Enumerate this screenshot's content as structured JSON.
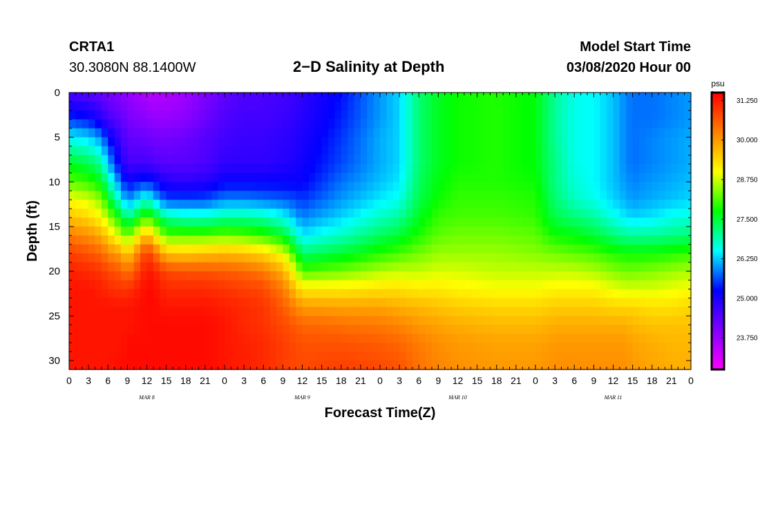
{
  "header": {
    "station_id": "CRTA1",
    "coords": "30.3080N 88.1400W",
    "title": "2−D Salinity at Depth",
    "start_label": "Model Start Time",
    "start_value": "03/08/2020 Hour 00"
  },
  "colorbar": {
    "unit": "psu",
    "stops": [
      "#ff00ff",
      "#8000ff",
      "#0000ff",
      "#00ffff",
      "#00ff00",
      "#ffff00",
      "#ff8000",
      "#ff0000"
    ]
  },
  "chart_data": {
    "type": "heatmap",
    "title": "2−D Salinity at Depth",
    "xlabel": "Forecast Time(Z)",
    "ylabel": "Depth (ft)",
    "x_hours": [
      0,
      96
    ],
    "x_ticks": [
      "0",
      "3",
      "6",
      "9",
      "12",
      "15",
      "18",
      "21",
      "0",
      "3",
      "6",
      "9",
      "12",
      "15",
      "18",
      "21",
      "0",
      "3",
      "6",
      "9",
      "12",
      "15",
      "18",
      "21",
      "0",
      "3",
      "6",
      "9",
      "12",
      "15",
      "18",
      "21",
      "0"
    ],
    "day_labels": [
      {
        "label": "MAR 8",
        "hour": 12
      },
      {
        "label": "MAR 9",
        "hour": 36
      },
      {
        "label": "MAR 10",
        "hour": 60
      },
      {
        "label": "MAR 11",
        "hour": 84
      }
    ],
    "ylim": [
      0,
      31
    ],
    "y_ticks": [
      0,
      5,
      10,
      15,
      20,
      25,
      30
    ],
    "color_range": [
      22.75,
      31.5
    ],
    "colorbar_ticks": [
      "23.750",
      "25.000",
      "26.250",
      "27.500",
      "28.750",
      "30.000",
      "31.250"
    ],
    "colorbar_values": [
      23.75,
      25.0,
      26.25,
      27.5,
      28.75,
      30.0,
      31.25
    ],
    "profile_hours": [
      0,
      3,
      5,
      6,
      8,
      9,
      12,
      13,
      15,
      18,
      21,
      24,
      27,
      30,
      33,
      35,
      36,
      42,
      48,
      51,
      54,
      57,
      60,
      66,
      72,
      75,
      78,
      81,
      84,
      86,
      87,
      90,
      93,
      96
    ],
    "profile_depths": [
      0,
      3,
      5,
      8,
      10,
      12,
      14,
      16,
      18,
      20,
      22,
      24,
      26,
      28,
      31
    ],
    "salinity": [
      [
        24.5,
        25.5,
        26.5,
        27.6,
        28.2,
        29.0,
        29.6,
        30.3,
        30.9,
        31.2,
        31.3,
        31.3,
        31.3,
        31.3,
        31.3
      ],
      [
        24.4,
        25.3,
        26.3,
        27.4,
        28.0,
        28.8,
        29.4,
        30.1,
        30.7,
        31.1,
        31.3,
        31.3,
        31.3,
        31.3,
        31.3
      ],
      [
        24.2,
        24.9,
        25.9,
        27.0,
        27.6,
        28.4,
        29.0,
        29.8,
        30.5,
        31.0,
        31.2,
        31.3,
        31.3,
        31.3,
        31.3
      ],
      [
        24.1,
        24.6,
        25.3,
        26.2,
        27.0,
        27.7,
        28.6,
        29.4,
        30.2,
        30.8,
        31.1,
        31.3,
        31.3,
        31.3,
        31.3
      ],
      [
        23.9,
        24.3,
        24.6,
        25.0,
        25.7,
        26.5,
        27.6,
        28.7,
        29.9,
        30.6,
        31.0,
        31.3,
        31.3,
        31.3,
        31.4
      ],
      [
        23.8,
        24.1,
        24.3,
        24.6,
        25.2,
        25.9,
        27.0,
        28.2,
        29.4,
        30.3,
        31.0,
        31.3,
        31.3,
        31.4,
        31.4
      ],
      [
        23.5,
        23.9,
        24.2,
        24.6,
        25.5,
        26.8,
        28.2,
        29.8,
        31.0,
        31.3,
        31.4,
        31.4,
        31.4,
        31.4,
        31.4
      ],
      [
        23.5,
        23.8,
        24.1,
        24.5,
        25.3,
        26.3,
        27.8,
        29.2,
        30.6,
        31.2,
        31.4,
        31.4,
        31.4,
        31.4,
        31.4
      ],
      [
        23.5,
        23.8,
        24.1,
        24.4,
        24.9,
        25.6,
        27.0,
        28.2,
        29.6,
        30.8,
        31.1,
        31.3,
        31.4,
        31.4,
        31.4
      ],
      [
        23.7,
        23.9,
        24.2,
        24.4,
        24.8,
        25.6,
        26.8,
        28.2,
        29.5,
        30.7,
        31.1,
        31.3,
        31.4,
        31.4,
        31.4
      ],
      [
        24.0,
        24.2,
        24.4,
        24.5,
        24.9,
        25.6,
        26.8,
        28.2,
        29.6,
        30.7,
        31.1,
        31.3,
        31.4,
        31.4,
        31.4
      ],
      [
        24.3,
        24.5,
        24.6,
        24.8,
        25.2,
        25.9,
        27.0,
        28.3,
        29.7,
        30.6,
        31.0,
        31.2,
        31.3,
        31.3,
        31.3
      ],
      [
        24.5,
        24.6,
        24.7,
        24.8,
        25.2,
        25.9,
        27.0,
        28.2,
        29.6,
        30.5,
        30.9,
        31.1,
        31.1,
        31.2,
        31.2
      ],
      [
        24.5,
        24.6,
        24.7,
        24.8,
        25.2,
        25.8,
        26.9,
        28.0,
        29.4,
        30.3,
        30.8,
        31.0,
        31.0,
        31.1,
        31.1
      ],
      [
        24.6,
        24.7,
        24.8,
        24.9,
        25.2,
        25.7,
        26.6,
        27.6,
        28.9,
        29.8,
        30.3,
        30.6,
        30.8,
        30.9,
        30.9
      ],
      [
        24.7,
        24.8,
        24.9,
        25.0,
        25.2,
        25.6,
        26.1,
        26.8,
        27.9,
        28.8,
        29.6,
        30.2,
        30.6,
        30.8,
        30.8
      ],
      [
        24.8,
        24.9,
        25.0,
        25.1,
        25.2,
        25.5,
        25.9,
        26.4,
        27.2,
        28.1,
        29.2,
        30.0,
        30.5,
        30.7,
        30.8
      ],
      [
        25.3,
        25.4,
        25.5,
        25.6,
        25.8,
        26.0,
        26.3,
        26.8,
        27.5,
        28.3,
        29.2,
        29.9,
        30.4,
        30.7,
        30.9
      ],
      [
        26.0,
        26.0,
        26.1,
        26.1,
        26.2,
        26.4,
        26.8,
        27.3,
        27.9,
        28.6,
        29.3,
        29.9,
        30.3,
        30.6,
        30.8
      ],
      [
        26.3,
        26.3,
        26.3,
        26.3,
        26.4,
        26.6,
        27.0,
        27.5,
        28.1,
        28.7,
        29.3,
        29.8,
        30.2,
        30.5,
        30.7
      ],
      [
        27.2,
        27.2,
        27.2,
        27.2,
        27.3,
        27.4,
        27.6,
        27.9,
        28.3,
        28.7,
        29.2,
        29.7,
        30.0,
        30.3,
        30.4
      ],
      [
        27.6,
        27.6,
        27.6,
        27.6,
        27.7,
        27.8,
        28.0,
        28.2,
        28.5,
        28.8,
        29.2,
        29.6,
        29.9,
        30.1,
        30.2
      ],
      [
        27.8,
        27.8,
        27.8,
        27.8,
        27.9,
        28.0,
        28.1,
        28.3,
        28.5,
        28.8,
        29.1,
        29.5,
        29.8,
        30.0,
        30.1
      ],
      [
        27.9,
        27.9,
        27.9,
        27.9,
        27.9,
        28.0,
        28.1,
        28.3,
        28.5,
        28.7,
        29.0,
        29.4,
        29.7,
        29.9,
        30.0
      ],
      [
        27.7,
        27.7,
        27.7,
        27.7,
        27.8,
        27.9,
        28.0,
        28.2,
        28.4,
        28.7,
        29.0,
        29.4,
        29.7,
        29.9,
        30.0
      ],
      [
        27.0,
        27.0,
        27.0,
        27.1,
        27.1,
        27.2,
        27.4,
        27.8,
        28.3,
        28.7,
        29.1,
        29.5,
        29.8,
        30.0,
        30.1
      ],
      [
        26.6,
        26.6,
        26.6,
        26.6,
        26.7,
        26.8,
        27.2,
        27.7,
        28.2,
        28.7,
        29.1,
        29.5,
        29.8,
        30.0,
        30.1
      ],
      [
        26.5,
        26.5,
        26.5,
        26.5,
        26.5,
        26.6,
        27.0,
        27.5,
        28.1,
        28.6,
        29.1,
        29.5,
        29.8,
        30.0,
        30.1
      ],
      [
        26.2,
        26.2,
        26.2,
        26.2,
        26.2,
        26.3,
        26.6,
        27.2,
        27.9,
        28.4,
        28.9,
        29.4,
        29.8,
        30.0,
        30.1
      ],
      [
        25.9,
        25.9,
        25.9,
        25.9,
        26.0,
        26.1,
        26.4,
        27.0,
        27.8,
        28.3,
        28.8,
        29.4,
        29.8,
        30.0,
        30.1
      ],
      [
        25.8,
        25.8,
        25.8,
        25.8,
        25.9,
        26.0,
        26.3,
        27.0,
        27.8,
        28.3,
        28.8,
        29.4,
        29.7,
        29.9,
        30.0
      ],
      [
        25.8,
        25.8,
        25.9,
        25.9,
        26.0,
        26.1,
        26.4,
        27.0,
        27.8,
        28.4,
        28.8,
        29.3,
        29.6,
        29.8,
        29.9
      ],
      [
        25.9,
        25.9,
        26.0,
        26.0,
        26.1,
        26.2,
        26.6,
        27.1,
        27.9,
        28.5,
        28.9,
        29.3,
        29.6,
        29.7,
        29.8
      ],
      [
        26.0,
        26.0,
        26.1,
        26.1,
        26.2,
        26.3,
        26.7,
        27.2,
        28.0,
        28.6,
        29.0,
        29.4,
        29.6,
        29.7,
        29.8
      ]
    ]
  }
}
